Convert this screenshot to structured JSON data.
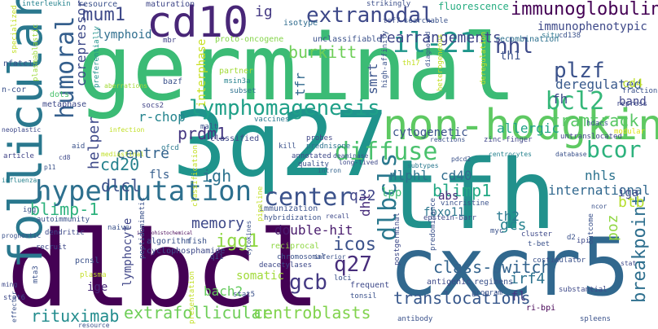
{
  "words": [
    {
      "text": "germinal",
      "color": "#3bbb75"
    },
    {
      "text": "3q27",
      "color": "#1f948c"
    },
    {
      "text": "tfh",
      "color": "#21918c"
    },
    {
      "text": "dlbcl",
      "color": "#440154"
    },
    {
      "text": "cxcr5",
      "color": "#31688e"
    },
    {
      "text": "follicular",
      "color": "#2a788e"
    },
    {
      "text": "non-hodgkin",
      "color": "#5ec962"
    },
    {
      "text": "cd10",
      "color": "#482677"
    },
    {
      "text": "hypermutation",
      "color": "#2d708e"
    },
    {
      "text": "center",
      "color": "#3b528b"
    },
    {
      "text": "lymphomagenesis",
      "color": "#1fa088"
    },
    {
      "text": "extranodal",
      "color": "#3e4989"
    },
    {
      "text": "immunoglobulin",
      "color": "#440154"
    },
    {
      "text": "il-21",
      "color": "#1f968b"
    },
    {
      "text": "humoral",
      "color": "#355f8d"
    },
    {
      "text": "diffuse",
      "color": "#4ac16d"
    },
    {
      "text": "bcl2",
      "color": "#35b779"
    },
    {
      "text": "nhl",
      "color": "#3e4a89"
    },
    {
      "text": "plzf",
      "color": "#3b528b"
    },
    {
      "text": "bcor",
      "color": "#2db27d"
    },
    {
      "text": "dlbcls",
      "color": "#2a788e"
    },
    {
      "text": "q27",
      "color": "#472d7b"
    },
    {
      "text": "gcb",
      "color": "#443983"
    },
    {
      "text": "rituximab",
      "color": "#228c8d"
    },
    {
      "text": "extrafollicular",
      "color": "#6ece58"
    },
    {
      "text": "centroblasts",
      "color": "#81d34d"
    },
    {
      "text": "translocations",
      "color": "#38588c"
    },
    {
      "text": "breakpoint",
      "color": "#2e6f8e"
    },
    {
      "text": "burkitt",
      "color": "#6ece58"
    },
    {
      "text": "rearrangements",
      "color": "#404688"
    },
    {
      "text": "mum1",
      "color": "#3e4989"
    },
    {
      "text": "ig",
      "color": "#443983"
    },
    {
      "text": "cd20",
      "color": "#26828e"
    },
    {
      "text": "blimp-1",
      "color": "#2db27d"
    },
    {
      "text": "blimp1",
      "color": "#22a884"
    },
    {
      "text": "dlcl",
      "color": "#3b528b"
    },
    {
      "text": "centre",
      "color": "#33638d"
    },
    {
      "text": "prdm1",
      "color": "#453781"
    },
    {
      "text": "igh",
      "color": "#2c728e"
    },
    {
      "text": "memory",
      "color": "#3e4989"
    },
    {
      "text": "igg1",
      "color": "#8fd744"
    },
    {
      "text": "icos",
      "color": "#3b528b"
    },
    {
      "text": "poz",
      "color": "#90d743"
    },
    {
      "text": "btb",
      "color": "#b5de2b"
    },
    {
      "text": "class-switch",
      "color": "#33638d"
    },
    {
      "text": "cd40",
      "color": "#2f6c8e"
    },
    {
      "text": "nhls",
      "color": "#2c728e"
    },
    {
      "text": "international",
      "color": "#31688e"
    },
    {
      "text": "gcs",
      "color": "#26828e"
    },
    {
      "text": "irf4",
      "color": "#2c728e"
    },
    {
      "text": "fl",
      "color": "#443983"
    },
    {
      "text": "th2",
      "color": "#2a788e"
    },
    {
      "text": "q32",
      "color": "#404588"
    },
    {
      "text": "dhl",
      "color": "#472d7b"
    },
    {
      "text": "lpp",
      "color": "#3dbc74"
    },
    {
      "text": "nlphl",
      "color": "#2c738e"
    },
    {
      "text": "tramtrack",
      "color": "#58c765"
    },
    {
      "text": "fh",
      "color": "#3e4a89"
    },
    {
      "text": "allergic",
      "color": "#20a386"
    },
    {
      "text": "cytogenetic",
      "color": "#3b528b"
    },
    {
      "text": "deregulated",
      "color": "#38598c"
    },
    {
      "text": "cd4",
      "color": "#bddf26"
    },
    {
      "text": "band",
      "color": "#404688"
    },
    {
      "text": "tfr",
      "color": "#31688e"
    },
    {
      "text": "smrt",
      "color": "#3a548c"
    },
    {
      "text": "helper",
      "color": "#3e4989"
    },
    {
      "text": "corepressor",
      "color": "#3e4a89"
    },
    {
      "text": "lymphoid",
      "color": "#2e6e8e"
    },
    {
      "text": "r-chop",
      "color": "#25848e"
    },
    {
      "text": "fls",
      "color": "#355e8d"
    },
    {
      "text": "somatic",
      "color": "#a0da39"
    },
    {
      "text": "bach2",
      "color": "#65cb5e"
    },
    {
      "text": "lymphocyte",
      "color": "#404688"
    },
    {
      "text": "ige",
      "color": "#482878"
    },
    {
      "text": "double-hit",
      "color": "#481a6c"
    },
    {
      "text": "fbxo11",
      "color": "#2a768e"
    },
    {
      "text": "abs",
      "color": "#472c7a"
    },
    {
      "text": "iga",
      "color": "#3e4989"
    },
    {
      "text": "th1",
      "color": "#3b528b"
    },
    {
      "text": "immunophenotypic",
      "color": "#3e4989"
    },
    {
      "text": "interphase",
      "color": "#c8e020"
    },
    {
      "text": "isotype",
      "color": "#2f6b8e"
    },
    {
      "text": "fluorescence",
      "color": "#27ad81"
    },
    {
      "text": "maturation",
      "color": "#3f4788"
    },
    {
      "text": "resource",
      "color": "#3b518b"
    },
    {
      "text": "interleukin",
      "color": "#25838e"
    },
    {
      "text": "strikingly",
      "color": "#3c4f8a"
    },
    {
      "text": "tcf7",
      "color": "#3d4d8a"
    },
    {
      "text": "searchable",
      "color": "#3a538b"
    },
    {
      "text": "recombination",
      "color": "#2d718e"
    },
    {
      "text": "situ",
      "color": "#2b758e"
    },
    {
      "text": "cd138",
      "color": "#3b528b"
    },
    {
      "text": "unclassifiable",
      "color": "#3b528b"
    },
    {
      "text": "proto-oncogene",
      "color": "#85d54a"
    },
    {
      "text": "mbr",
      "color": "#414487"
    },
    {
      "text": "partner",
      "color": "#a2da37"
    },
    {
      "text": "msin3a",
      "color": "#26828e"
    },
    {
      "text": "subset",
      "color": "#2d718e"
    },
    {
      "text": "bazf",
      "color": "#3b528b"
    },
    {
      "text": "socs2",
      "color": "#414487"
    },
    {
      "text": "metaphase",
      "color": "#3e4989"
    },
    {
      "text": "dots",
      "color": "#4ac16d"
    },
    {
      "text": "nfatc1",
      "color": "#3b528b"
    },
    {
      "text": "n-cor",
      "color": "#3b528b"
    },
    {
      "text": "specialized",
      "color": "#c2df23"
    },
    {
      "text": "plasmablastic",
      "color": "#9dd93b"
    },
    {
      "text": "preferentially",
      "color": "#20928c"
    },
    {
      "text": "aberrations",
      "color": "#a2da37"
    },
    {
      "text": "malt",
      "color": "#3b528b"
    },
    {
      "text": "vaccines",
      "color": "#2a788e"
    },
    {
      "text": "infection",
      "color": "#c0df25"
    },
    {
      "text": "neoplastic",
      "color": "#3e4989"
    },
    {
      "text": "article",
      "color": "#414487"
    },
    {
      "text": "influenza",
      "color": "#26828e"
    },
    {
      "text": "aid",
      "color": "#3b528b"
    },
    {
      "text": "ofcd",
      "color": "#2a788e"
    },
    {
      "text": "classified",
      "color": "#3e4989"
    },
    {
      "text": "kill",
      "color": "#3b528b"
    },
    {
      "text": "probes",
      "color": "#404688"
    },
    {
      "text": "prednisone",
      "color": "#2c728e"
    },
    {
      "text": "annotated",
      "color": "#3e4989"
    },
    {
      "text": "quality",
      "color": "#3b528b"
    },
    {
      "text": "reactions",
      "color": "#3b528b"
    },
    {
      "text": "zinc-finger",
      "color": "#404688"
    },
    {
      "text": "centrocytes",
      "color": "#26828e"
    },
    {
      "text": "database",
      "color": "#3b528b"
    },
    {
      "text": "untranslocated",
      "color": "#404688"
    },
    {
      "text": "hdacs",
      "color": "#3b528b"
    },
    {
      "text": "modular",
      "color": "#dfe318"
    },
    {
      "text": "repress",
      "color": "#3e4989"
    },
    {
      "text": "fraction",
      "color": "#3b528b"
    },
    {
      "text": "mediastinal",
      "color": "#c0df25"
    },
    {
      "text": "intron",
      "color": "#33638d"
    },
    {
      "text": "subtypes",
      "color": "#2a788e"
    },
    {
      "text": "pdcd2",
      "color": "#3b528b"
    },
    {
      "text": "deaminase",
      "color": "#3b528b"
    },
    {
      "text": "long-lived",
      "color": "#3e4989"
    },
    {
      "text": "autoimmunity",
      "color": "#3b528b"
    },
    {
      "text": "immunization",
      "color": "#3b528b"
    },
    {
      "text": "hybridization",
      "color": "#3b528b"
    },
    {
      "text": "recall",
      "color": "#3e4989"
    },
    {
      "text": "vincristine",
      "color": "#3b528b"
    },
    {
      "text": "epstein-barr",
      "color": "#3e4989"
    },
    {
      "text": "myc",
      "color": "#3b528b"
    },
    {
      "text": "naive",
      "color": "#3b528b"
    },
    {
      "text": "igg",
      "color": "#3b528b"
    },
    {
      "text": "dendritic",
      "color": "#3e4989"
    },
    {
      "text": "immunohistochemical",
      "color": "#440154"
    },
    {
      "text": "algorithm",
      "color": "#3b528b"
    },
    {
      "text": "fish",
      "color": "#3b528b"
    },
    {
      "text": "cyclophosphamide",
      "color": "#3e4989"
    },
    {
      "text": "peptidomimetic",
      "color": "#3b528b"
    },
    {
      "text": "pcnsl",
      "color": "#3b528b"
    },
    {
      "text": "recruit",
      "color": "#3e4989"
    },
    {
      "text": "plasma",
      "color": "#c2df23"
    },
    {
      "text": "q11",
      "color": "#3b528b"
    },
    {
      "text": "reciprocal",
      "color": "#8fd744"
    },
    {
      "text": "chromosomal",
      "color": "#3b528b"
    },
    {
      "text": "deacetylases",
      "color": "#3e4989"
    },
    {
      "text": "loci",
      "color": "#3b528b"
    },
    {
      "text": "frequent",
      "color": "#3e4989"
    },
    {
      "text": "tonsil",
      "color": "#3b528b"
    },
    {
      "text": "stat5",
      "color": "#3b528b"
    },
    {
      "text": "stat6",
      "color": "#3e4989"
    },
    {
      "text": "antibody",
      "color": "#3b528b"
    },
    {
      "text": "antigenic",
      "color": "#3e4989"
    },
    {
      "text": "regimens",
      "color": "#3b528b"
    },
    {
      "text": "program",
      "color": "#3b528b"
    },
    {
      "text": "substantial",
      "color": "#3e4989"
    },
    {
      "text": "ri-bpi",
      "color": "#440154"
    },
    {
      "text": "spleens",
      "color": "#3b528b"
    },
    {
      "text": "costimulator",
      "color": "#3b528b"
    },
    {
      "text": "cluster",
      "color": "#3e4989"
    },
    {
      "text": "t-bet",
      "color": "#3b528b"
    },
    {
      "text": "d2",
      "color": "#3b528b"
    },
    {
      "text": "ipi",
      "color": "#3e4989"
    },
    {
      "text": "outcome",
      "color": "#3b528b"
    },
    {
      "text": "ncor",
      "color": "#3b528b"
    },
    {
      "text": "stat",
      "color": "#3e4989"
    },
    {
      "text": "prognostic",
      "color": "#3b528b"
    },
    {
      "text": "mta3",
      "color": "#3b528b"
    },
    {
      "text": "ming",
      "color": "#3e4989"
    },
    {
      "text": "resource",
      "color": "#3b528b"
    },
    {
      "text": "th17",
      "color": "#c2df23"
    },
    {
      "text": "heterogeneous",
      "color": "#c2df23"
    },
    {
      "text": "deregulation",
      "color": "#c2df23"
    },
    {
      "text": "high-affinity",
      "color": "#3b528b"
    },
    {
      "text": "diagnosed",
      "color": "#3b528b"
    },
    {
      "text": "postgerminal",
      "color": "#3e4989"
    },
    {
      "text": "predominance",
      "color": "#3b528b"
    },
    {
      "text": "pipeline",
      "color": "#c2df23"
    },
    {
      "text": "classification",
      "color": "#c2df23"
    },
    {
      "text": "inferior",
      "color": "#3b528b"
    },
    {
      "text": "presentation",
      "color": "#c2df23"
    },
    {
      "text": "effector",
      "color": "#3b528b"
    },
    {
      "text": "p11",
      "color": "#3b528b"
    },
    {
      "text": "cd8",
      "color": "#3e4989"
    },
    {
      "text": "cytokines",
      "color": "#3b528b"
    }
  ]
}
